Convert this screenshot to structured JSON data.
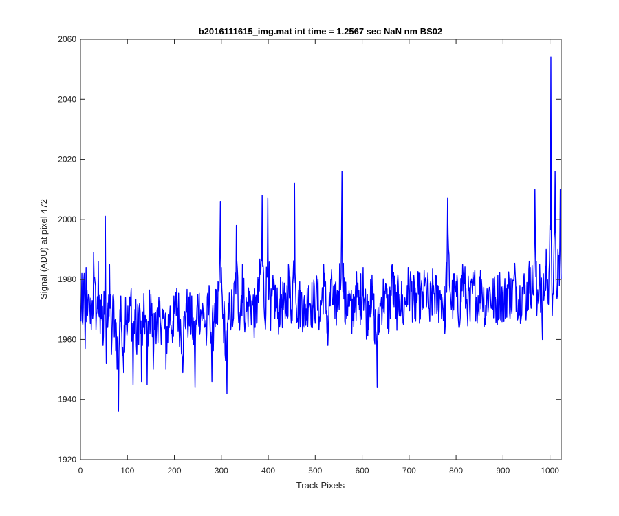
{
  "chart_data": {
    "type": "line",
    "title": "b2016111615_img.mat int time = 1.2567 sec  NaN nm BS02",
    "xlabel": "Track Pixels",
    "ylabel": "Signal (ADU) at pixel 472",
    "xlim": [
      0,
      1024
    ],
    "ylim": [
      1920,
      2060
    ],
    "xticks": [
      0,
      100,
      200,
      300,
      400,
      500,
      600,
      700,
      800,
      900,
      1000
    ],
    "yticks": [
      1920,
      1940,
      1960,
      1980,
      2000,
      2020,
      2040,
      2060
    ],
    "grid": false,
    "legend": "none",
    "colors": {
      "line": "#0000ff",
      "axes": "#262626",
      "background": "#ffffff"
    },
    "series": [
      {
        "x_start": 1,
        "x_step": 1,
        "values_note_free": true,
        "values": []
      }
    ],
    "anchor_points": [
      [
        1,
        1966
      ],
      [
        3,
        1982
      ],
      [
        5,
        1965
      ],
      [
        8,
        1982
      ],
      [
        10,
        1957
      ],
      [
        12,
        1984
      ],
      [
        15,
        1968
      ],
      [
        18,
        1975
      ],
      [
        20,
        1970
      ],
      [
        25,
        1973
      ],
      [
        28,
        1989
      ],
      [
        32,
        1978
      ],
      [
        35,
        1969
      ],
      [
        38,
        1986
      ],
      [
        42,
        1962
      ],
      [
        45,
        1975
      ],
      [
        48,
        1958
      ],
      [
        50,
        1976
      ],
      [
        53,
        2001
      ],
      [
        55,
        1952
      ],
      [
        58,
        1964
      ],
      [
        62,
        1985
      ],
      [
        66,
        1955
      ],
      [
        70,
        1975
      ],
      [
        73,
        1966
      ],
      [
        78,
        1950
      ],
      [
        81,
        1936
      ],
      [
        84,
        1970
      ],
      [
        88,
        1962
      ],
      [
        92,
        1949
      ],
      [
        96,
        1974
      ],
      [
        100,
        1963
      ],
      [
        104,
        1966
      ],
      [
        108,
        1977
      ],
      [
        112,
        1945
      ],
      [
        116,
        1970
      ],
      [
        120,
        1955
      ],
      [
        126,
        1972
      ],
      [
        130,
        1946
      ],
      [
        134,
        1964
      ],
      [
        138,
        1968
      ],
      [
        142,
        1945
      ],
      [
        146,
        1968
      ],
      [
        150,
        1975
      ],
      [
        155,
        1950
      ],
      [
        160,
        1969
      ],
      [
        165,
        1959
      ],
      [
        170,
        1966
      ],
      [
        176,
        1967
      ],
      [
        182,
        1950
      ],
      [
        190,
        1968
      ],
      [
        198,
        1961
      ],
      [
        205,
        1977
      ],
      [
        212,
        1962
      ],
      [
        218,
        1949
      ],
      [
        225,
        1972
      ],
      [
        230,
        1966
      ],
      [
        238,
        1962
      ],
      [
        244,
        1944
      ],
      [
        250,
        1975
      ],
      [
        256,
        1970
      ],
      [
        262,
        1967
      ],
      [
        268,
        1958
      ],
      [
        275,
        1976
      ],
      [
        280,
        1946
      ],
      [
        286,
        1972
      ],
      [
        292,
        1965
      ],
      [
        298,
        2006
      ],
      [
        303,
        1967
      ],
      [
        308,
        1955
      ],
      [
        312,
        1942
      ],
      [
        318,
        1972
      ],
      [
        325,
        1966
      ],
      [
        332,
        1998
      ],
      [
        338,
        1969
      ],
      [
        345,
        1985
      ],
      [
        352,
        1966
      ],
      [
        360,
        1976
      ],
      [
        366,
        1972
      ],
      [
        372,
        1964
      ],
      [
        380,
        1980
      ],
      [
        387,
        2008
      ],
      [
        393,
        1966
      ],
      [
        399,
        2007
      ],
      [
        405,
        1963
      ],
      [
        412,
        1980
      ],
      [
        420,
        1967
      ],
      [
        428,
        1975
      ],
      [
        436,
        1967
      ],
      [
        443,
        1985
      ],
      [
        450,
        1970
      ],
      [
        456,
        2012
      ],
      [
        462,
        1967
      ],
      [
        470,
        1975
      ],
      [
        478,
        1964
      ],
      [
        486,
        1978
      ],
      [
        495,
        1970
      ],
      [
        502,
        1977
      ],
      [
        510,
        1966
      ],
      [
        518,
        1985
      ],
      [
        527,
        1958
      ],
      [
        534,
        1980
      ],
      [
        542,
        1967
      ],
      [
        550,
        1976
      ],
      [
        557,
        2016
      ],
      [
        563,
        1966
      ],
      [
        570,
        1975
      ],
      [
        578,
        1962
      ],
      [
        586,
        1978
      ],
      [
        594,
        1970
      ],
      [
        602,
        1984
      ],
      [
        610,
        1961
      ],
      [
        618,
        1980
      ],
      [
        626,
        1960
      ],
      [
        632,
        1944
      ],
      [
        640,
        1972
      ],
      [
        648,
        1976
      ],
      [
        656,
        1962
      ],
      [
        664,
        1985
      ],
      [
        672,
        1967
      ],
      [
        680,
        1975
      ],
      [
        688,
        1965
      ],
      [
        696,
        1978
      ],
      [
        704,
        1980
      ],
      [
        712,
        1967
      ],
      [
        720,
        1975
      ],
      [
        728,
        1970
      ],
      [
        736,
        1980
      ],
      [
        744,
        1966
      ],
      [
        752,
        1978
      ],
      [
        760,
        1970
      ],
      [
        768,
        1975
      ],
      [
        776,
        1962
      ],
      [
        782,
        2007
      ],
      [
        790,
        1970
      ],
      [
        798,
        1976
      ],
      [
        806,
        1964
      ],
      [
        814,
        1985
      ],
      [
        822,
        1972
      ],
      [
        830,
        1966
      ],
      [
        838,
        1978
      ],
      [
        846,
        1970
      ],
      [
        854,
        1980
      ],
      [
        862,
        1965
      ],
      [
        870,
        1976
      ],
      [
        878,
        1970
      ],
      [
        886,
        1968
      ],
      [
        894,
        1975
      ],
      [
        902,
        1966
      ],
      [
        910,
        1978
      ],
      [
        918,
        1970
      ],
      [
        926,
        1982
      ],
      [
        934,
        1968
      ],
      [
        942,
        1976
      ],
      [
        950,
        1970
      ],
      [
        958,
        1984
      ],
      [
        964,
        1975
      ],
      [
        968,
        2010
      ],
      [
        972,
        1968
      ],
      [
        978,
        1985
      ],
      [
        984,
        1960
      ],
      [
        988,
        1976
      ],
      [
        992,
        1990
      ],
      [
        996,
        1972
      ],
      [
        999,
        1986
      ],
      [
        1002,
        2054
      ],
      [
        1005,
        1968
      ],
      [
        1008,
        1985
      ],
      [
        1011,
        2016
      ],
      [
        1014,
        1976
      ],
      [
        1017,
        1990
      ],
      [
        1020,
        1978
      ],
      [
        1022,
        2010
      ],
      [
        1024,
        1980
      ]
    ]
  }
}
